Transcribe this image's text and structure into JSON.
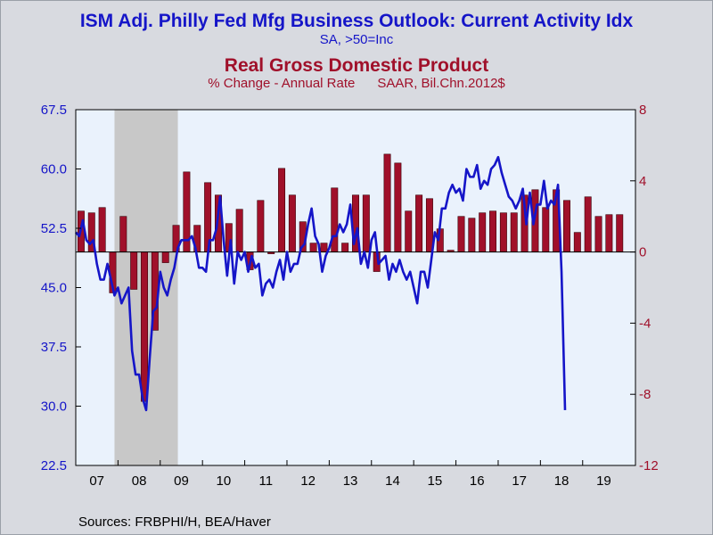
{
  "title_left": "ISM Adj. Philly Fed Mfg Business Outlook: Current Activity Idx",
  "subtitle_left": "SA, >50=Inc",
  "title_right": "Real Gross Domestic Product",
  "subtitle_right": "% Change - Annual Rate      SAAR, Bil.Chn.2012$",
  "source": "Sources:  FRBPHI/H, BEA/Haver",
  "colors": {
    "line": "#1515c8",
    "bars": "#a0102a",
    "plot_bg": "#eaf2fc",
    "recession": "#c8c8c8"
  },
  "chart_data": {
    "type": "bar+line",
    "x_tick_labels": [
      "07",
      "08",
      "09",
      "10",
      "11",
      "12",
      "13",
      "14",
      "15",
      "16",
      "17",
      "18",
      "19"
    ],
    "left_axis": {
      "ylim": [
        22.5,
        67.5
      ],
      "ticks": [
        "67.5",
        "60.0",
        "52.5",
        "45.0",
        "37.5",
        "30.0",
        "22.5"
      ],
      "tick_values": [
        67.5,
        60,
        52.5,
        45,
        37.5,
        30,
        22.5
      ]
    },
    "right_axis": {
      "ylim": [
        -12,
        8
      ],
      "ticks": [
        "8",
        "4",
        "0",
        "-4",
        "-8",
        "-12"
      ],
      "tick_values": [
        8,
        4,
        0,
        -4,
        -8,
        -12
      ]
    },
    "recession": {
      "start": 2007.917,
      "end": 2009.417
    },
    "gdp_bars": {
      "name": "Real Gross Domestic Product",
      "x": [
        2007.125,
        2007.375,
        2007.625,
        2007.875,
        2008.125,
        2008.375,
        2008.625,
        2008.875,
        2009.125,
        2009.375,
        2009.625,
        2009.875,
        2010.125,
        2010.375,
        2010.625,
        2010.875,
        2011.125,
        2011.375,
        2011.625,
        2011.875,
        2012.125,
        2012.375,
        2012.625,
        2012.875,
        2013.125,
        2013.375,
        2013.625,
        2013.875,
        2014.125,
        2014.375,
        2014.625,
        2014.875,
        2015.125,
        2015.375,
        2015.625,
        2015.875,
        2016.125,
        2016.375,
        2016.625,
        2016.875,
        2017.125,
        2017.375,
        2017.625,
        2017.875,
        2018.125,
        2018.375,
        2018.625,
        2018.875,
        2019.125,
        2019.375,
        2019.625,
        2019.875
      ],
      "values": [
        2.3,
        2.2,
        2.5,
        -2.3,
        2.0,
        -2.1,
        -8.4,
        -4.4,
        -0.6,
        1.5,
        4.5,
        1.5,
        3.9,
        3.2,
        1.6,
        2.4,
        -1.0,
        2.9,
        -0.1,
        4.7,
        3.2,
        1.7,
        0.5,
        0.5,
        3.6,
        0.5,
        3.2,
        3.2,
        -1.1,
        5.5,
        5.0,
        2.3,
        3.2,
        3.0,
        1.3,
        0.1,
        2.0,
        1.9,
        2.2,
        2.3,
        2.2,
        2.2,
        3.2,
        3.5,
        2.5,
        3.5,
        2.9,
        1.1,
        3.1,
        2.0,
        2.1,
        2.1
      ]
    },
    "philly_line": {
      "name": "ISM Adj. Philly Fed Mfg Business Outlook: Current Activity Idx",
      "x_start": 2007.0,
      "step": 0.083333,
      "values": [
        52,
        51.5,
        53.5,
        51,
        50.5,
        51,
        48,
        46,
        46,
        48,
        46,
        44,
        45,
        43,
        44,
        45,
        37,
        34,
        34,
        31,
        29.5,
        36,
        42,
        42.5,
        47,
        45,
        44,
        46,
        47.5,
        50,
        51,
        51,
        51,
        51.5,
        50,
        47.5,
        47.5,
        47,
        51,
        51,
        52.5,
        56.5,
        51,
        46.5,
        51,
        45.5,
        49.5,
        48.5,
        49.5,
        47,
        49,
        47.5,
        48,
        44,
        45.5,
        46,
        45,
        47,
        48.5,
        46,
        49.5,
        47,
        48,
        48,
        50,
        50.5,
        53,
        55,
        51.5,
        50.5,
        47,
        49,
        50,
        51.5,
        51.5,
        53,
        52,
        53,
        55.5,
        50.5,
        52.5,
        48,
        49.5,
        47.5,
        51,
        52,
        48,
        48.5,
        49,
        46,
        48,
        47,
        48.5,
        47,
        46,
        47,
        45,
        43,
        47,
        47,
        45,
        48.5,
        52,
        51,
        55,
        55,
        57,
        58,
        57,
        57.5,
        56,
        60,
        59,
        59,
        60.5,
        57.5,
        58.5,
        58,
        60,
        60.5,
        61.5,
        59.5,
        58,
        56.5,
        56,
        55,
        56,
        57.5,
        53,
        57,
        53,
        55.5,
        55.5,
        58.5,
        55,
        56,
        55.5,
        58,
        47,
        29.5
      ]
    }
  }
}
